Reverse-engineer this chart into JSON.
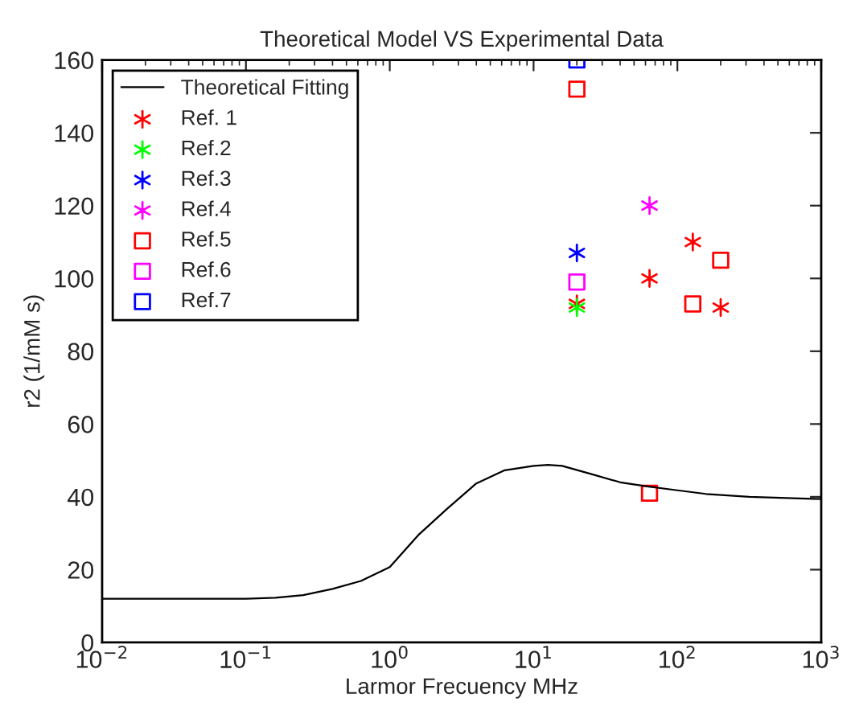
{
  "chart_data": {
    "type": "scatter",
    "title": "Theoretical Model VS Experimental Data",
    "xlabel": "Larmor Frecuency MHz",
    "ylabel": "r2 (1/mM s)",
    "log": "x",
    "xlim": [
      0.01,
      1000
    ],
    "xticks": [
      {
        "value": 0.01,
        "label": "10$^{−2}$"
      },
      {
        "value": 0.1,
        "label": "10$^{−1}$"
      },
      {
        "value": 1,
        "label": "10$^{0}$"
      },
      {
        "value": 10,
        "label": "10$^{1}$"
      },
      {
        "value": 100,
        "label": "10$^{2}$"
      },
      {
        "value": 1000,
        "label": "10$^{3}$"
      }
    ],
    "ylim": [
      0,
      160
    ],
    "yticks": [
      0,
      20,
      40,
      60,
      80,
      100,
      120,
      140,
      160
    ],
    "grid": false,
    "legend": "top left",
    "series": [
      {
        "name": "Theoretical Fitting",
        "type": "line",
        "color": "#000000",
        "marker": "none",
        "line_style": "solid",
        "x": [
          0.01,
          0.1,
          0.16,
          0.25,
          0.4,
          0.63,
          1,
          1.58,
          2.5,
          4,
          6.3,
          10,
          12.6,
          15.8,
          25,
          40,
          63,
          100,
          158,
          316,
          1000
        ],
        "values": [
          12,
          12,
          12.3,
          13,
          14.7,
          16.9,
          20.7,
          29.5,
          36.7,
          43.7,
          47.3,
          48.5,
          48.8,
          48.5,
          46.3,
          44,
          42.8,
          41.8,
          40.8,
          40,
          39.4
        ]
      },
      {
        "name": "Ref. 1",
        "color": "#ff0000",
        "marker": "cross",
        "x": [
          20,
          64,
          128,
          200
        ],
        "values": [
          93,
          100,
          110,
          92
        ]
      },
      {
        "name": "Ref.2",
        "color": "#00ff00",
        "marker": "cross",
        "x": [
          20
        ],
        "values": [
          92
        ]
      },
      {
        "name": "Ref.3",
        "color": "#0000ff",
        "marker": "cross",
        "x": [
          20
        ],
        "values": [
          107
        ]
      },
      {
        "name": "Ref.4",
        "color": "#ff00ff",
        "marker": "cross",
        "x": [
          64
        ],
        "values": [
          120
        ]
      },
      {
        "name": "Ref.5",
        "color": "#ff0000",
        "marker": "square",
        "x": [
          20,
          64,
          128,
          200
        ],
        "values": [
          152,
          41,
          93,
          105
        ]
      },
      {
        "name": "Ref.6",
        "color": "#ff00ff",
        "marker": "square",
        "x": [
          20
        ],
        "values": [
          99
        ]
      },
      {
        "name": "Ref.7",
        "color": "#0000ff",
        "marker": "square",
        "x": [
          20
        ],
        "values": [
          160
        ]
      }
    ]
  }
}
